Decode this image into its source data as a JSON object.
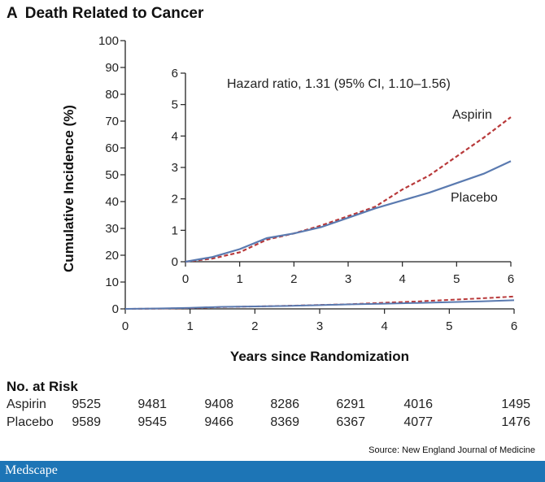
{
  "panel": {
    "letter": "A",
    "title": "Death Related to Cancer"
  },
  "chart_data": {
    "type": "line",
    "ylabel": "Cumulative Incidence (%)",
    "xlabel": "Years since Randomization",
    "xlim": [
      0,
      6
    ],
    "ylim": [
      0,
      100
    ],
    "xticks": [
      0,
      1,
      2,
      3,
      4,
      5,
      6
    ],
    "yticks": [
      0,
      10,
      20,
      30,
      40,
      50,
      60,
      70,
      80,
      90,
      100
    ],
    "grid": false,
    "series": [
      {
        "name": "Aspirin",
        "color": "#b8393a",
        "dash": true,
        "x": [
          0,
          0.5,
          1,
          1.5,
          2,
          2.5,
          3,
          3.5,
          4,
          4.5,
          5,
          5.5,
          6
        ],
        "y": [
          0,
          0.1,
          0.3,
          0.7,
          0.9,
          1.15,
          1.45,
          1.75,
          2.3,
          2.75,
          3.35,
          3.95,
          4.6
        ]
      },
      {
        "name": "Placebo",
        "color": "#5a7ab0",
        "dash": false,
        "x": [
          0,
          0.5,
          1,
          1.5,
          2,
          2.5,
          3,
          3.5,
          4,
          4.5,
          5,
          5.5,
          6
        ],
        "y": [
          0,
          0.15,
          0.4,
          0.75,
          0.9,
          1.1,
          1.4,
          1.7,
          1.95,
          2.2,
          2.5,
          2.8,
          3.2
        ]
      }
    ],
    "inset": {
      "xlim": [
        0,
        6
      ],
      "ylim": [
        0,
        6
      ],
      "xticks": [
        0,
        1,
        2,
        3,
        4,
        5,
        6
      ],
      "yticks": [
        0,
        1,
        2,
        3,
        4,
        5,
        6
      ],
      "annotation": "Hazard ratio, 1.31 (95% CI, 1.10–1.56)",
      "labels": {
        "aspirin": "Aspirin",
        "placebo": "Placebo"
      }
    }
  },
  "risk_table": {
    "title": "No. at Risk",
    "rows": [
      {
        "name": "Aspirin",
        "values": [
          "9525",
          "9481",
          "9408",
          "8286",
          "6291",
          "4016",
          "1495"
        ]
      },
      {
        "name": "Placebo",
        "values": [
          "9589",
          "9545",
          "9466",
          "8369",
          "6367",
          "4077",
          "1476"
        ]
      }
    ]
  },
  "source": "Source: New England Journal of Medicine",
  "footer": {
    "brand": "Medscape"
  }
}
